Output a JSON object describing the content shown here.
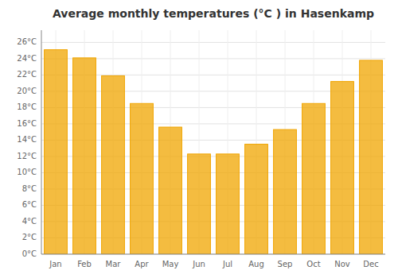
{
  "chart_data": {
    "type": "bar",
    "title": "Average monthly temperatures (°C ) in Hasenkamp",
    "categories": [
      "Jan",
      "Feb",
      "Mar",
      "Apr",
      "May",
      "Jun",
      "Jul",
      "Aug",
      "Sep",
      "Oct",
      "Nov",
      "Dec"
    ],
    "values": [
      25.1,
      24.1,
      21.9,
      18.5,
      15.6,
      12.3,
      12.3,
      13.5,
      15.3,
      18.5,
      21.2,
      23.8
    ],
    "color": "#F0A500",
    "ylim": [
      0,
      27.5
    ],
    "yticks": [
      {
        "value": 0,
        "label": "0°C"
      },
      {
        "value": 2,
        "label": "2°C"
      },
      {
        "value": 4,
        "label": "4°C"
      },
      {
        "value": 6,
        "label": "6°C"
      },
      {
        "value": 8,
        "label": "8°C"
      },
      {
        "value": 10,
        "label": "10°C"
      },
      {
        "value": 12,
        "label": "12°C"
      },
      {
        "value": 14,
        "label": "14°C"
      },
      {
        "value": 16,
        "label": "16°C"
      },
      {
        "value": 18,
        "label": "18°C"
      },
      {
        "value": 20,
        "label": "20°C"
      },
      {
        "value": 22,
        "label": "22°C"
      },
      {
        "value": 24,
        "label": "24°C"
      },
      {
        "value": 26,
        "label": "26°C"
      }
    ],
    "grid": true
  }
}
